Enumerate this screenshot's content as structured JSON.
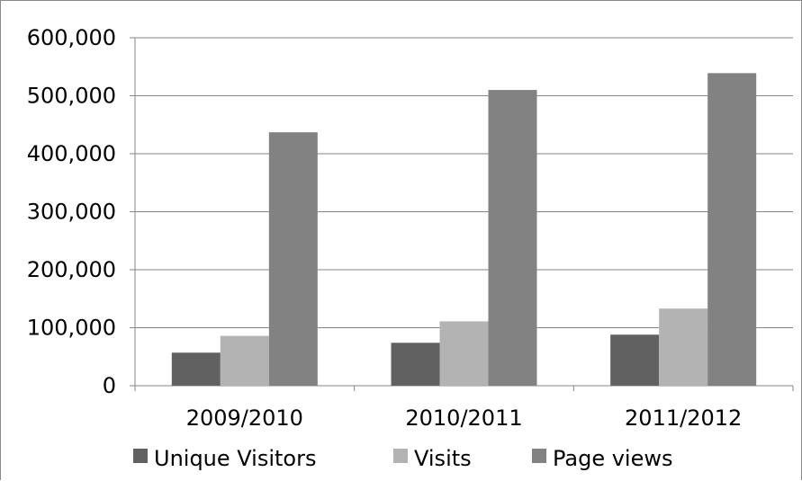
{
  "chart_data": {
    "type": "bar",
    "categories": [
      "2009/2010",
      "2010/2011",
      "2011/2012"
    ],
    "series": [
      {
        "name": "Unique Visitors",
        "values": [
          57000,
          74000,
          88000
        ],
        "color": "#616161"
      },
      {
        "name": "Visits",
        "values": [
          86000,
          111000,
          133000
        ],
        "color": "#b3b3b3"
      },
      {
        "name": "Page views",
        "values": [
          437000,
          510000,
          539000
        ],
        "color": "#828282"
      }
    ],
    "y_ticks": [
      "0",
      "100,000",
      "200,000",
      "300,000",
      "400,000",
      "500,000",
      "600,000"
    ],
    "ylim": [
      0,
      600000
    ],
    "grid": true,
    "legend_position": "bottom"
  }
}
